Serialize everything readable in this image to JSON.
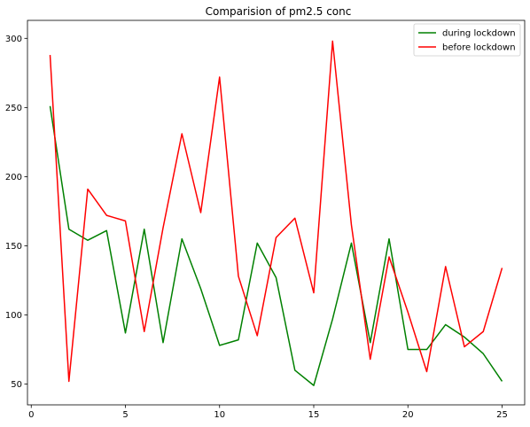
{
  "chart_data": {
    "type": "line",
    "title": "Comparision of pm2.5 conc",
    "xlabel": "",
    "ylabel": "",
    "xlim": [
      -0.2,
      26.2
    ],
    "ylim": [
      35,
      313
    ],
    "xticks": [
      0,
      5,
      10,
      15,
      20,
      25
    ],
    "yticks": [
      50,
      100,
      150,
      200,
      250,
      300
    ],
    "grid": false,
    "legend_position": "top-right",
    "x": [
      1,
      2,
      3,
      4,
      5,
      6,
      7,
      8,
      9,
      10,
      11,
      12,
      13,
      14,
      15,
      16,
      17,
      18,
      19,
      20,
      21,
      22,
      23,
      24,
      25
    ],
    "series": [
      {
        "name": "during lockdown",
        "color": "#008000",
        "values": [
          251,
          162,
          154,
          161,
          87,
          162,
          80,
          155,
          119,
          78,
          82,
          152,
          127,
          60,
          49,
          97,
          152,
          80,
          155,
          75,
          75,
          93,
          84,
          72,
          52
        ]
      },
      {
        "name": "before lockdown",
        "color": "#ff0000",
        "values": [
          288,
          52,
          191,
          172,
          168,
          88,
          163,
          231,
          174,
          272,
          128,
          85,
          156,
          170,
          116,
          298,
          165,
          68,
          142,
          102,
          59,
          135,
          77,
          88,
          134
        ]
      }
    ]
  }
}
